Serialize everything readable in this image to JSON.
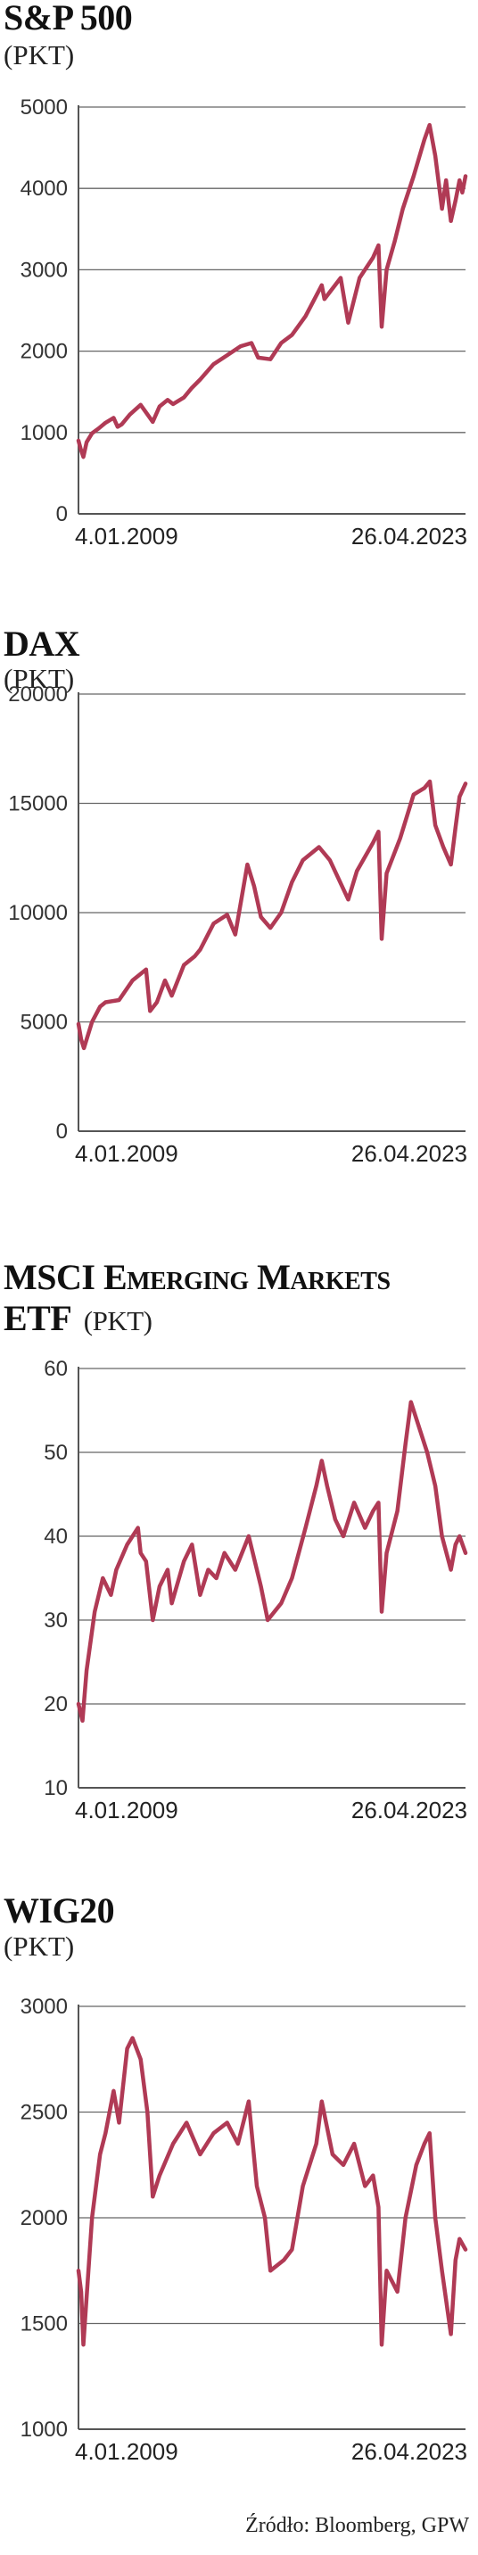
{
  "line_color": "#b03a55",
  "axis_color": "#555555",
  "grid_color": "#666666",
  "source": "Źródło: Bloomberg, GPW",
  "chart_data": [
    {
      "type": "line",
      "title": "S&P 500",
      "unit": "(PKT)",
      "ylim": [
        0,
        5000
      ],
      "yticks": [
        0,
        1000,
        2000,
        3000,
        4000,
        5000
      ],
      "xlim": [
        2009.0,
        2023.32
      ],
      "xtick_labels": [
        "4.01.2009",
        "26.04.2023"
      ],
      "grid": true,
      "series": [
        {
          "x": [
            2009.0,
            2009.08,
            2009.18,
            2009.3,
            2009.5,
            2009.75,
            2010.0,
            2010.3,
            2010.45,
            2010.6,
            2010.9,
            2011.3,
            2011.6,
            2011.75,
            2012.0,
            2012.3,
            2012.5,
            2012.9,
            2013.2,
            2013.5,
            2014.0,
            2014.5,
            2015.0,
            2015.4,
            2015.65,
            2016.1,
            2016.5,
            2016.9,
            2017.4,
            2018.0,
            2018.1,
            2018.7,
            2018.98,
            2019.4,
            2019.9,
            2020.1,
            2020.22,
            2020.4,
            2020.7,
            2021.0,
            2021.4,
            2021.8,
            2021.99,
            2022.2,
            2022.45,
            2022.6,
            2022.78,
            2022.95,
            2023.1,
            2023.2,
            2023.32
          ],
          "y": [
            900,
            800,
            700,
            880,
            990,
            1050,
            1120,
            1180,
            1070,
            1100,
            1220,
            1340,
            1200,
            1130,
            1320,
            1400,
            1350,
            1430,
            1550,
            1650,
            1840,
            1950,
            2060,
            2100,
            1920,
            1900,
            2100,
            2200,
            2430,
            2810,
            2640,
            2900,
            2350,
            2900,
            3150,
            3300,
            2300,
            3000,
            3350,
            3750,
            4150,
            4600,
            4780,
            4400,
            3750,
            4100,
            3600,
            3850,
            4100,
            3950,
            4150
          ]
        }
      ]
    },
    {
      "type": "line",
      "title": "DAX",
      "unit": "(PKT)",
      "ylim": [
        0,
        20000
      ],
      "yticks": [
        0,
        5000,
        10000,
        15000,
        20000
      ],
      "xlim": [
        2009.0,
        2023.32
      ],
      "xtick_labels": [
        "4.01.2009",
        "26.04.2023"
      ],
      "grid": true,
      "series": [
        {
          "x": [
            2009.0,
            2009.1,
            2009.2,
            2009.5,
            2009.8,
            2010.0,
            2010.5,
            2011.0,
            2011.5,
            2011.65,
            2011.9,
            2012.2,
            2012.45,
            2012.9,
            2013.3,
            2013.5,
            2014.0,
            2014.5,
            2014.8,
            2015.25,
            2015.5,
            2015.75,
            2016.1,
            2016.5,
            2016.9,
            2017.3,
            2017.9,
            2018.3,
            2018.98,
            2019.3,
            2019.9,
            2020.1,
            2020.22,
            2020.4,
            2020.9,
            2021.4,
            2021.8,
            2022.0,
            2022.2,
            2022.5,
            2022.78,
            2022.95,
            2023.1,
            2023.32
          ],
          "y": [
            4900,
            4200,
            3800,
            5000,
            5700,
            5900,
            6000,
            6900,
            7400,
            5500,
            5900,
            6900,
            6200,
            7600,
            8000,
            8300,
            9500,
            9900,
            9000,
            12200,
            11200,
            9800,
            9300,
            10000,
            11400,
            12400,
            13000,
            12400,
            10600,
            11900,
            13200,
            13700,
            8800,
            11800,
            13400,
            15400,
            15700,
            16000,
            14000,
            13000,
            12200,
            13900,
            15300,
            15900
          ]
        }
      ]
    },
    {
      "type": "line",
      "title": "MSCI Emerging Markets ETF",
      "unit": "(PKT)",
      "ylim": [
        10,
        60
      ],
      "yticks": [
        10,
        20,
        30,
        40,
        50,
        60
      ],
      "xlim": [
        2009.0,
        2023.32
      ],
      "xtick_labels": [
        "4.01.2009",
        "26.04.2023"
      ],
      "grid": true,
      "series": [
        {
          "x": [
            2009.0,
            2009.15,
            2009.3,
            2009.6,
            2009.9,
            2010.2,
            2010.4,
            2010.8,
            2011.2,
            2011.3,
            2011.5,
            2011.75,
            2012.0,
            2012.3,
            2012.45,
            2012.9,
            2013.2,
            2013.5,
            2013.8,
            2014.1,
            2014.4,
            2014.8,
            2015.3,
            2015.75,
            2016.0,
            2016.5,
            2016.9,
            2017.4,
            2017.8,
            2018.0,
            2018.2,
            2018.5,
            2018.8,
            2019.2,
            2019.6,
            2019.9,
            2020.1,
            2020.22,
            2020.4,
            2020.8,
            2021.1,
            2021.3,
            2021.6,
            2021.9,
            2022.2,
            2022.45,
            2022.78,
            2022.95,
            2023.1,
            2023.32
          ],
          "y": [
            20,
            18,
            24,
            31,
            35,
            33,
            36,
            39,
            41,
            38,
            37,
            30,
            34,
            36,
            32,
            37,
            39,
            33,
            36,
            35,
            38,
            36,
            40,
            34,
            30,
            32,
            35,
            41,
            46,
            49,
            46,
            42,
            40,
            44,
            41,
            43,
            44,
            31,
            38,
            43,
            51,
            56,
            53,
            50,
            46,
            40,
            36,
            39,
            40,
            38
          ]
        }
      ]
    },
    {
      "type": "line",
      "title": "WIG20",
      "unit": "(PKT)",
      "ylim": [
        1000,
        3000
      ],
      "yticks": [
        1000,
        1500,
        2000,
        2500,
        3000
      ],
      "xlim": [
        2009.0,
        2023.32
      ],
      "xtick_labels": [
        "4.01.2009",
        "26.04.2023"
      ],
      "grid": true,
      "series": [
        {
          "x": [
            2009.0,
            2009.1,
            2009.18,
            2009.5,
            2009.8,
            2010.0,
            2010.3,
            2010.5,
            2010.8,
            2011.0,
            2011.3,
            2011.55,
            2011.75,
            2012.0,
            2012.5,
            2013.0,
            2013.5,
            2014.0,
            2014.5,
            2014.9,
            2015.3,
            2015.6,
            2015.9,
            2016.1,
            2016.6,
            2016.9,
            2017.3,
            2017.8,
            2018.0,
            2018.4,
            2018.8,
            2019.2,
            2019.6,
            2019.9,
            2020.1,
            2020.22,
            2020.4,
            2020.8,
            2021.1,
            2021.5,
            2021.8,
            2021.99,
            2022.2,
            2022.45,
            2022.78,
            2022.95,
            2023.1,
            2023.32
          ],
          "y": [
            1750,
            1650,
            1400,
            2000,
            2300,
            2400,
            2600,
            2450,
            2800,
            2850,
            2750,
            2500,
            2100,
            2200,
            2350,
            2450,
            2300,
            2400,
            2450,
            2350,
            2550,
            2150,
            2000,
            1750,
            1800,
            1850,
            2150,
            2350,
            2550,
            2300,
            2250,
            2350,
            2150,
            2200,
            2050,
            1400,
            1750,
            1650,
            2000,
            2250,
            2350,
            2400,
            2000,
            1750,
            1450,
            1800,
            1900,
            1850
          ]
        }
      ]
    }
  ]
}
